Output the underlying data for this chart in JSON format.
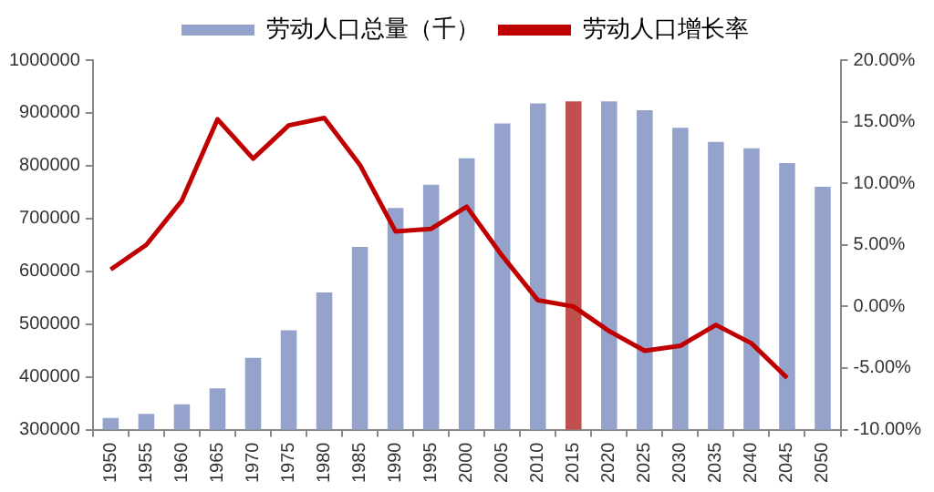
{
  "chart_data": {
    "type": "bar",
    "categories": [
      "1950",
      "1955",
      "1960",
      "1965",
      "1970",
      "1975",
      "1980",
      "1985",
      "1990",
      "1995",
      "2000",
      "2005",
      "2010",
      "2015",
      "2020",
      "2025",
      "2030",
      "2035",
      "2040",
      "2045",
      "2050"
    ],
    "series": [
      {
        "name": "劳动人口总量（千）",
        "colors": [
          "#95a3cc",
          "#95a3cc",
          "#95a3cc",
          "#95a3cc",
          "#95a3cc",
          "#95a3cc",
          "#95a3cc",
          "#95a3cc",
          "#95a3cc",
          "#95a3cc",
          "#95a3cc",
          "#95a3cc",
          "#95a3cc",
          "#c0504d",
          "#95a3cc",
          "#95a3cc",
          "#95a3cc",
          "#95a3cc",
          "#95a3cc",
          "#95a3cc",
          "#95a3cc"
        ],
        "values": [
          322000,
          330000,
          348000,
          378000,
          436000,
          488000,
          560000,
          646000,
          720000,
          764000,
          814000,
          880000,
          918000,
          922000,
          922000,
          905000,
          872000,
          845000,
          833000,
          805000,
          760000
        ]
      },
      {
        "name": "劳动人口增长率",
        "type": "line",
        "axis": "y2",
        "color": "#c00000",
        "values": [
          3.0,
          5.0,
          8.6,
          15.2,
          12.0,
          14.7,
          15.3,
          11.5,
          6.1,
          6.3,
          8.1,
          4.1,
          0.5,
          0.0,
          -2.0,
          -3.6,
          -3.2,
          -1.5,
          -3.0,
          -5.8,
          null
        ]
      }
    ],
    "ylim": [
      300000,
      1000000
    ],
    "yticks": [
      300000,
      400000,
      500000,
      600000,
      700000,
      800000,
      900000,
      1000000
    ],
    "y2lim": [
      -10,
      20
    ],
    "y2ticks": [
      {
        "value": -10,
        "label": "-10.00%"
      },
      {
        "value": -5,
        "label": "-5.00%"
      },
      {
        "value": 0,
        "label": "0.00%"
      },
      {
        "value": 5,
        "label": "5.00%"
      },
      {
        "value": 10,
        "label": "10.00%"
      },
      {
        "value": 15,
        "label": "15.00%"
      },
      {
        "value": 20,
        "label": "20.00%"
      }
    ],
    "grid": false,
    "legend": "top",
    "marker": "none"
  }
}
